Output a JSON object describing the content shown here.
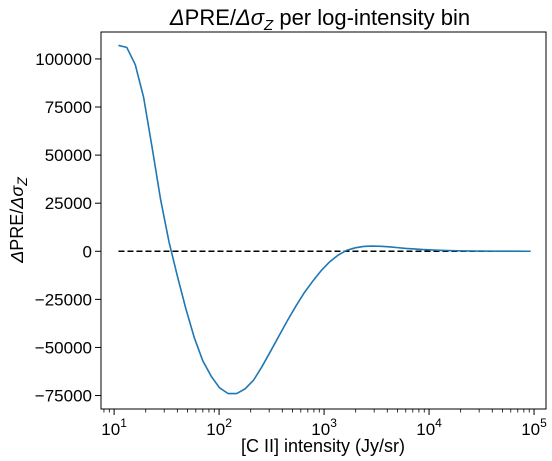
{
  "chart_data": {
    "type": "line",
    "title_parts": {
      "delta1": "Δ",
      "word": "PRE/",
      "delta2": "Δ",
      "sigma": "σ",
      "sub": "Z",
      "rest": " per log-intensity bin"
    },
    "xlabel": "[C II] intensity (Jy/sr)",
    "ylabel_parts": {
      "delta1": "Δ",
      "word": "PRE/",
      "delta2": "Δ",
      "sigma": "σ",
      "sub": "Z"
    },
    "x_scale": "log",
    "xlim": [
      7.5,
      130000
    ],
    "ylim": [
      -82000,
      114000
    ],
    "x_ticks": [
      {
        "value": 10,
        "base": "10",
        "exp": "1"
      },
      {
        "value": 100,
        "base": "10",
        "exp": "2"
      },
      {
        "value": 1000,
        "base": "10",
        "exp": "3"
      },
      {
        "value": 10000,
        "base": "10",
        "exp": "4"
      },
      {
        "value": 100000,
        "base": "10",
        "exp": "5"
      }
    ],
    "y_ticks": [
      {
        "value": -75000,
        "label": "−75000"
      },
      {
        "value": -50000,
        "label": "−50000"
      },
      {
        "value": -25000,
        "label": "−25000"
      },
      {
        "value": 0,
        "label": "0"
      },
      {
        "value": 25000,
        "label": "25000"
      },
      {
        "value": 50000,
        "label": "50000"
      },
      {
        "value": 75000,
        "label": "75000"
      },
      {
        "value": 100000,
        "label": "100000"
      }
    ],
    "grid": false,
    "line_color": "#1f77b4",
    "reference_line": {
      "y": 0,
      "x_range": [
        11,
        93000
      ],
      "style": "dashed",
      "color": "#000000"
    },
    "series": [
      {
        "x": [
          11,
          13.2,
          15.9,
          19.1,
          23,
          27.7,
          33.3,
          40.1,
          48.3,
          58.1,
          70,
          84.2,
          101,
          122,
          147,
          177,
          213,
          256,
          309,
          372,
          448,
          539,
          649,
          781,
          940,
          1130,
          1360,
          1640,
          1980,
          2380,
          2860,
          3450,
          4150,
          5000,
          6020,
          7250,
          8730,
          10500,
          12700,
          15200,
          18400,
          22100,
          26600,
          32000,
          38600,
          46500,
          56000,
          67400,
          81100,
          93000
        ],
        "y": [
          107000,
          106000,
          97000,
          80000,
          54000,
          27000,
          5000,
          -13000,
          -30000,
          -45000,
          -57000,
          -65000,
          -71000,
          -74000,
          -74000,
          -71500,
          -67000,
          -60000,
          -52000,
          -44000,
          -36000,
          -28500,
          -21500,
          -15500,
          -10000,
          -5500,
          -2000,
          500,
          1800,
          2500,
          2700,
          2600,
          2300,
          1900,
          1500,
          1200,
          900,
          700,
          500,
          380,
          280,
          200,
          150,
          100,
          80,
          60,
          40,
          30,
          20,
          10
        ]
      }
    ]
  }
}
